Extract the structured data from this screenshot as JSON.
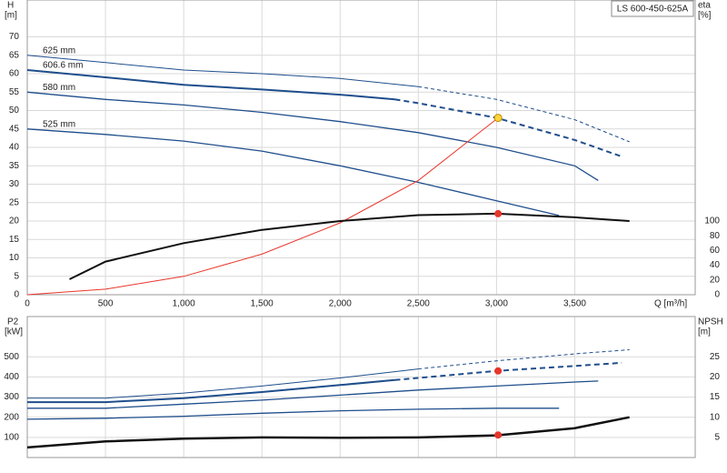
{
  "chart_data": [
    {
      "type": "line",
      "title": "LS 600-450-625A",
      "y_label": "H",
      "y_unit": "[m]",
      "y2_label": "eta",
      "y2_unit": "[%]",
      "x_label": "Q [m³/h]",
      "xlim": [
        0,
        4270
      ],
      "xticks": [
        0,
        500,
        {
          "value": 1000,
          "label": "1,000"
        },
        {
          "value": 1500,
          "label": "1,500"
        },
        {
          "value": 2000,
          "label": "2,000"
        },
        {
          "value": 2500,
          "label": "2,500"
        },
        {
          "value": 3000,
          "label": "3,000"
        },
        {
          "value": 3500,
          "label": "3,500"
        }
      ],
      "ylim": [
        0,
        80
      ],
      "yticks": [
        0,
        5,
        10,
        15,
        20,
        25,
        30,
        35,
        40,
        45,
        50,
        55,
        60,
        65,
        70
      ],
      "y2lim": [
        0,
        400
      ],
      "y2ticks": [
        0,
        20,
        40,
        60,
        80,
        100
      ],
      "grid": true,
      "series": [
        {
          "name": "625 mm",
          "color": "#1f4e8c",
          "width": 1,
          "dash_from": 2500,
          "x": [
            0,
            500,
            1000,
            1500,
            2000,
            2500,
            3000,
            3500,
            3850
          ],
          "values": [
            65,
            63,
            61,
            60,
            58.7,
            56.5,
            53,
            47.5,
            41.5
          ]
        },
        {
          "name": "606.6 mm",
          "color": "#1f4e8c",
          "width": 2,
          "dash_from": 2350,
          "x": [
            0,
            500,
            1000,
            1500,
            2000,
            2350,
            2500,
            3000,
            3500,
            3800
          ],
          "values": [
            61,
            59,
            57,
            55.7,
            54.3,
            53,
            52,
            48,
            42,
            37.5
          ]
        },
        {
          "name": "580 mm",
          "color": "#1f4e8c",
          "width": 1.3,
          "x": [
            0,
            500,
            1000,
            1500,
            2000,
            2500,
            3000,
            3500,
            3650
          ],
          "values": [
            55,
            53,
            51.5,
            49.5,
            47,
            44,
            40,
            35,
            31
          ]
        },
        {
          "name": "525 mm",
          "color": "#1f4e8c",
          "width": 1.3,
          "x": [
            0,
            500,
            1000,
            1500,
            2000,
            2500,
            3000,
            3400
          ],
          "values": [
            45,
            43.5,
            41.7,
            39,
            35,
            30.5,
            25.5,
            21.5
          ]
        },
        {
          "color": "#e8362b",
          "width": 1,
          "x": [
            0,
            500,
            1000,
            1500,
            2000,
            2500,
            3010
          ],
          "values": [
            0,
            1.5,
            5,
            11,
            19.5,
            31,
            48
          ]
        },
        {
          "color": "#111111",
          "width": 2,
          "axis": "y2",
          "x": [
            270,
            500,
            1000,
            1500,
            2000,
            2500,
            3000,
            3500,
            3850
          ],
          "values": [
            21,
            45,
            70,
            88,
            100,
            108,
            110,
            105,
            100
          ]
        },
        {
          "marker": "#ffd43b",
          "x": [
            3010
          ],
          "values": [
            48
          ]
        },
        {
          "marker": "#e8362b",
          "axis": "y2",
          "x": [
            3010
          ],
          "values": [
            110
          ]
        }
      ]
    },
    {
      "type": "line",
      "y_label": "P2",
      "y_unit": "[kW]",
      "y2_label": "NPSH",
      "y2_unit": "[m]",
      "xlim": [
        0,
        4270
      ],
      "ylim": [
        0,
        700
      ],
      "yticks": [
        100,
        200,
        300,
        400,
        500
      ],
      "y2lim": [
        0,
        35
      ],
      "y2ticks": [
        5,
        10,
        15,
        20,
        25
      ],
      "grid": true,
      "series": [
        {
          "color": "#1f4e8c",
          "width": 1,
          "dash_from": 2500,
          "x": [
            0,
            500,
            1000,
            1500,
            2000,
            2500,
            3000,
            3500,
            3850
          ],
          "values": [
            295,
            295,
            320,
            355,
            395,
            440,
            480,
            515,
            535
          ]
        },
        {
          "color": "#1f4e8c",
          "width": 2,
          "dash_from": 2350,
          "x": [
            0,
            500,
            1000,
            1500,
            2000,
            2350,
            2500,
            3000,
            3500,
            3800
          ],
          "values": [
            275,
            275,
            295,
            325,
            360,
            385,
            395,
            430,
            455,
            470
          ]
        },
        {
          "color": "#1f4e8c",
          "width": 1.3,
          "x": [
            0,
            500,
            1000,
            1500,
            2000,
            2500,
            3000,
            3500,
            3650
          ],
          "values": [
            245,
            245,
            265,
            285,
            310,
            335,
            355,
            375,
            380
          ]
        },
        {
          "color": "#1f4e8c",
          "width": 1.3,
          "x": [
            0,
            500,
            1000,
            1500,
            2000,
            2500,
            3000,
            3400
          ],
          "values": [
            190,
            195,
            205,
            220,
            232,
            240,
            245,
            245
          ]
        },
        {
          "color": "#111111",
          "width": 2.5,
          "axis": "y2",
          "x": [
            0,
            500,
            1000,
            1500,
            2000,
            2500,
            3000,
            3500,
            3850
          ],
          "values": [
            2.5,
            4,
            4.7,
            5,
            4.9,
            5,
            5.5,
            7.3,
            10
          ]
        },
        {
          "marker": "#e8362b",
          "x": [
            3010
          ],
          "values": [
            430
          ]
        },
        {
          "marker": "#e8362b",
          "axis": "y2",
          "x": [
            3010
          ],
          "values": [
            5.6
          ]
        }
      ]
    }
  ]
}
